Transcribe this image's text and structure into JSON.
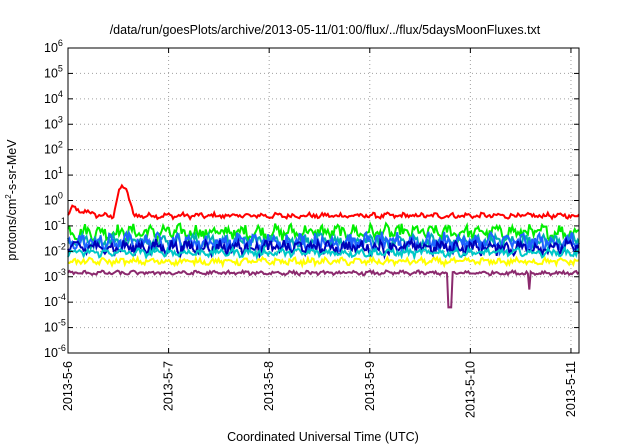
{
  "chart_data": {
    "type": "line",
    "title": "/data/run/goesPlots/archive/2013-05-11/01:00/flux/../flux/5daysMoonFluxes.txt",
    "xlabel": "Coordinated Universal Time (UTC)",
    "ylabel": {
      "pre": "protons/cm",
      "sup": "2",
      "post": "-s-sr-MeV"
    },
    "y_scale": "log",
    "ylim_exponents": [
      -6,
      6
    ],
    "y_ticks": [
      {
        "base": "10",
        "exp": "-6"
      },
      {
        "base": "10",
        "exp": "-5"
      },
      {
        "base": "10",
        "exp": "-4"
      },
      {
        "base": "10",
        "exp": "-3"
      },
      {
        "base": "10",
        "exp": "-2"
      },
      {
        "base": "10",
        "exp": "-1"
      },
      {
        "base": "10",
        "exp": "0"
      },
      {
        "base": "10",
        "exp": "1"
      },
      {
        "base": "10",
        "exp": "2"
      },
      {
        "base": "10",
        "exp": "3"
      },
      {
        "base": "10",
        "exp": "4"
      },
      {
        "base": "10",
        "exp": "5"
      },
      {
        "base": "10",
        "exp": "6"
      }
    ],
    "xlim_days": [
      0,
      5.08
    ],
    "x_ticks": [
      {
        "label": "2013-5-6",
        "day": 0
      },
      {
        "label": "2013-5-7",
        "day": 1
      },
      {
        "label": "2013-5-8",
        "day": 2
      },
      {
        "label": "2013-5-9",
        "day": 3
      },
      {
        "label": "2013-5-10",
        "day": 4
      },
      {
        "label": "2013-5-11",
        "day": 5
      }
    ],
    "grid": true,
    "series": [
      {
        "color": "#ff0000",
        "base_log": -0.6,
        "noise": 0.08,
        "bumps": [
          [
            0.0,
            0.12,
            0.3
          ],
          [
            0.55,
            0.3,
            1.05
          ],
          [
            0.45,
            0.65,
            1.15
          ],
          [
            0.9,
            0.75,
            -0.2
          ],
          [
            0.06,
            0.3,
            0.15
          ]
        ],
        "events": []
      },
      {
        "color": "#00ee00",
        "base_log": -1.25,
        "noise": 0.22,
        "bumps": [],
        "events": []
      },
      {
        "color": "#00b0b0",
        "base_log": -1.6,
        "noise": 0.2,
        "bumps": [],
        "events": []
      },
      {
        "color": "#1e64ff",
        "base_log": -1.65,
        "noise": 0.28,
        "bumps": [],
        "events": []
      },
      {
        "color": "#0000b8",
        "base_log": -1.85,
        "noise": 0.22,
        "bumps": [],
        "events": []
      },
      {
        "color": "#00c8c8",
        "base_log": -2.05,
        "noise": 0.12,
        "bumps": [],
        "events": []
      },
      {
        "color": "#ffff00",
        "base_log": -2.4,
        "noise": 0.1,
        "bumps": [],
        "events": []
      },
      {
        "color": "#8b2a6e",
        "base_log": -2.85,
        "noise": 0.06,
        "bumps": [],
        "events": [
          [
            3.77,
            3.82,
            -1.4
          ],
          [
            4.58,
            4.6,
            -0.7
          ]
        ]
      }
    ]
  }
}
